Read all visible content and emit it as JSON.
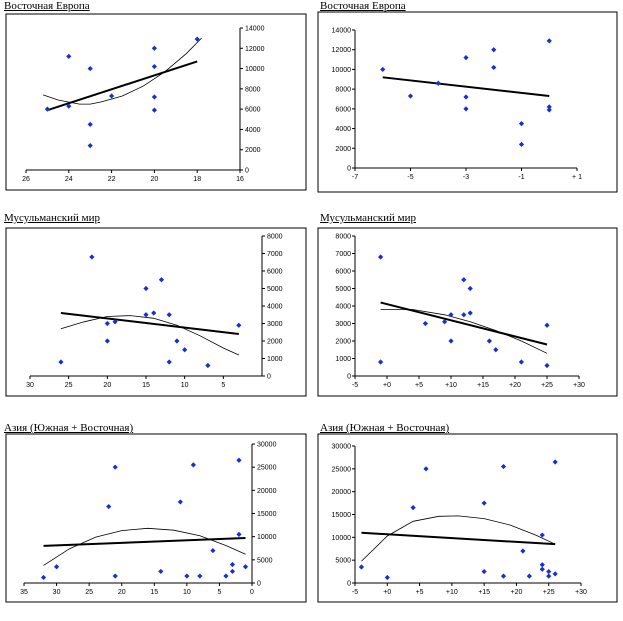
{
  "colors": {
    "points": "#1a2fd0",
    "lines": "#000000",
    "background": "#ffffff"
  },
  "chart_data": [
    {
      "type": "scatter",
      "title": "Восточная Европа",
      "x_reversed": true,
      "y_axis_side": "right",
      "xlim": [
        26,
        16
      ],
      "ylim": [
        0,
        14000
      ],
      "x_ticks": [
        26,
        24,
        22,
        20,
        18,
        16
      ],
      "x_tick_labels": [
        "26",
        "24",
        "22",
        "20",
        "18",
        "16"
      ],
      "y_ticks": [
        0,
        2000,
        4000,
        6000,
        8000,
        10000,
        12000,
        14000
      ],
      "y_tick_labels": [
        "0",
        "2000",
        "4000",
        "6000",
        "8000",
        "10000",
        "12000",
        "14000"
      ],
      "points": [
        [
          25,
          6000
        ],
        [
          24,
          11200
        ],
        [
          24,
          6300
        ],
        [
          23,
          10000
        ],
        [
          23,
          4500
        ],
        [
          23,
          2400
        ],
        [
          22,
          7300
        ],
        [
          20,
          12000
        ],
        [
          20,
          10200
        ],
        [
          20,
          7200
        ],
        [
          20,
          5900
        ],
        [
          18,
          12900
        ]
      ],
      "linear_trend": [
        [
          25,
          5900
        ],
        [
          18,
          10700
        ]
      ],
      "poly_trend": [
        [
          25.2,
          7400
        ],
        [
          24.5,
          6900
        ],
        [
          23.5,
          6500
        ],
        [
          23,
          6500
        ],
        [
          22.5,
          6700
        ],
        [
          21.5,
          7300
        ],
        [
          20.5,
          8300
        ],
        [
          19.5,
          9700
        ],
        [
          18.5,
          11500
        ],
        [
          17.8,
          13000
        ]
      ]
    },
    {
      "type": "scatter",
      "title": "Восточная Европа",
      "y_axis_side": "left",
      "xlim": [
        -7,
        1
      ],
      "ylim": [
        0,
        14000
      ],
      "x_ticks": [
        -7,
        -5,
        -3,
        -1,
        1
      ],
      "x_tick_labels": [
        "-7",
        "-5",
        "-3",
        "-1",
        "+ 1"
      ],
      "y_ticks": [
        0,
        2000,
        4000,
        6000,
        8000,
        10000,
        12000,
        14000
      ],
      "y_tick_labels": [
        "0",
        "2000",
        "4000",
        "6000",
        "8000",
        "10000",
        "12000",
        "14000"
      ],
      "points": [
        [
          -6,
          10000
        ],
        [
          -5,
          7300
        ],
        [
          -4,
          8600
        ],
        [
          -3,
          11200
        ],
        [
          -3,
          7200
        ],
        [
          -3,
          6000
        ],
        [
          -2,
          12000
        ],
        [
          -2,
          10200
        ],
        [
          -1,
          4500
        ],
        [
          -1,
          2400
        ],
        [
          0,
          12900
        ],
        [
          0,
          6200
        ],
        [
          0,
          5900
        ]
      ],
      "linear_trend": [
        [
          -6,
          9200
        ],
        [
          0,
          7300
        ]
      ]
    },
    {
      "type": "scatter",
      "title": "Мусульманский мир",
      "x_reversed": true,
      "y_axis_side": "right",
      "xlim": [
        30,
        0
      ],
      "ylim": [
        0,
        8000
      ],
      "x_ticks": [
        30,
        25,
        20,
        15,
        10,
        5
      ],
      "x_tick_labels": [
        "30",
        "25",
        "20",
        "15",
        "10",
        "5"
      ],
      "y_ticks": [
        0,
        1000,
        2000,
        3000,
        4000,
        5000,
        6000,
        7000,
        8000
      ],
      "y_tick_labels": [
        "0",
        "1000",
        "2000",
        "3000",
        "4000",
        "5000",
        "6000",
        "7000",
        "8000"
      ],
      "points": [
        [
          26,
          800
        ],
        [
          22,
          6800
        ],
        [
          20,
          3000
        ],
        [
          20,
          2000
        ],
        [
          19,
          3100
        ],
        [
          15,
          5000
        ],
        [
          15,
          3500
        ],
        [
          14,
          3600
        ],
        [
          13,
          5500
        ],
        [
          12,
          3500
        ],
        [
          12,
          800
        ],
        [
          11,
          2000
        ],
        [
          10,
          1500
        ],
        [
          7,
          600
        ],
        [
          3,
          2900
        ]
      ],
      "linear_trend": [
        [
          26,
          3600
        ],
        [
          3,
          2400
        ]
      ],
      "poly_trend": [
        [
          26,
          2700
        ],
        [
          23,
          3100
        ],
        [
          20,
          3400
        ],
        [
          17,
          3450
        ],
        [
          14,
          3300
        ],
        [
          11,
          2900
        ],
        [
          8,
          2300
        ],
        [
          5,
          1600
        ],
        [
          3,
          1200
        ]
      ]
    },
    {
      "type": "scatter",
      "title": "Мусульманский мир",
      "y_axis_side": "left",
      "xlim": [
        -5,
        30
      ],
      "ylim": [
        0,
        8000
      ],
      "x_ticks": [
        -5,
        0,
        5,
        10,
        15,
        20,
        25,
        30
      ],
      "x_tick_labels": [
        "-5",
        "+0",
        "+5",
        "+10",
        "+15",
        "+20",
        "+25",
        "+30"
      ],
      "y_ticks": [
        0,
        1000,
        2000,
        3000,
        4000,
        5000,
        6000,
        7000,
        8000
      ],
      "y_tick_labels": [
        "0",
        "1000",
        "2000",
        "3000",
        "4000",
        "5000",
        "6000",
        "7000",
        "8000"
      ],
      "points": [
        [
          -1,
          6800
        ],
        [
          -1,
          800
        ],
        [
          6,
          3000
        ],
        [
          9,
          3100
        ],
        [
          10,
          2000
        ],
        [
          10,
          3500
        ],
        [
          12,
          5500
        ],
        [
          12,
          3500
        ],
        [
          13,
          5000
        ],
        [
          13,
          3600
        ],
        [
          16,
          2000
        ],
        [
          17,
          1500
        ],
        [
          21,
          800
        ],
        [
          25,
          2900
        ],
        [
          25,
          600
        ]
      ],
      "linear_trend": [
        [
          -1,
          4200
        ],
        [
          25,
          1800
        ]
      ],
      "poly_trend": [
        [
          -1,
          3800
        ],
        [
          4,
          3800
        ],
        [
          9,
          3500
        ],
        [
          13,
          3100
        ],
        [
          17,
          2600
        ],
        [
          21,
          2000
        ],
        [
          25,
          1300
        ]
      ]
    },
    {
      "type": "scatter",
      "title": "Азия (Южная + Восточная)",
      "x_reversed": true,
      "y_axis_side": "right",
      "xlim": [
        35,
        0
      ],
      "ylim": [
        0,
        30000
      ],
      "x_ticks": [
        35,
        30,
        25,
        20,
        15,
        10,
        5,
        0
      ],
      "x_tick_labels": [
        "35",
        "30",
        "25",
        "20",
        "15",
        "10",
        "5",
        "0"
      ],
      "y_ticks": [
        0,
        5000,
        10000,
        15000,
        20000,
        25000,
        30000
      ],
      "y_tick_labels": [
        "0",
        "5000",
        "10000",
        "15000",
        "20000",
        "25000",
        "30000"
      ],
      "points": [
        [
          32,
          1200
        ],
        [
          30,
          3500
        ],
        [
          22,
          16500
        ],
        [
          21,
          25000
        ],
        [
          21,
          1500
        ],
        [
          14,
          2500
        ],
        [
          11,
          17500
        ],
        [
          10,
          1500
        ],
        [
          9,
          25500
        ],
        [
          8,
          1500
        ],
        [
          6,
          7000
        ],
        [
          4,
          1500
        ],
        [
          3,
          2500
        ],
        [
          3,
          4000
        ],
        [
          2,
          26500
        ],
        [
          2,
          10500
        ],
        [
          1,
          3500
        ]
      ],
      "linear_trend": [
        [
          32,
          8000
        ],
        [
          1,
          9700
        ]
      ],
      "poly_trend": [
        [
          32,
          3800
        ],
        [
          28,
          7400
        ],
        [
          24,
          9900
        ],
        [
          20,
          11300
        ],
        [
          16,
          11800
        ],
        [
          12,
          11400
        ],
        [
          8,
          10200
        ],
        [
          4,
          8100
        ],
        [
          1,
          6200
        ]
      ]
    },
    {
      "type": "scatter",
      "title": "Азия (Южная + Восточная)",
      "y_axis_side": "left",
      "xlim": [
        -5,
        30
      ],
      "ylim": [
        0,
        30000
      ],
      "x_ticks": [
        -5,
        0,
        5,
        10,
        15,
        20,
        25,
        30
      ],
      "x_tick_labels": [
        "-5",
        "+0",
        "+5",
        "+10",
        "+15",
        "+20",
        "+25",
        "+30"
      ],
      "y_ticks": [
        0,
        5000,
        10000,
        15000,
        20000,
        25000,
        30000
      ],
      "y_tick_labels": [
        "0",
        "5000",
        "10000",
        "15000",
        "20000",
        "25000",
        "30000"
      ],
      "points": [
        [
          -4,
          3500
        ],
        [
          0,
          1200
        ],
        [
          4,
          16500
        ],
        [
          6,
          25000
        ],
        [
          15,
          17500
        ],
        [
          15,
          2500
        ],
        [
          18,
          25500
        ],
        [
          18,
          1500
        ],
        [
          21,
          7000
        ],
        [
          22,
          1500
        ],
        [
          24,
          10500
        ],
        [
          24,
          4000
        ],
        [
          24,
          3000
        ],
        [
          25,
          2500
        ],
        [
          25,
          1500
        ],
        [
          26,
          26500
        ],
        [
          26,
          2000
        ]
      ],
      "linear_trend": [
        [
          -4,
          11000
        ],
        [
          26,
          8500
        ]
      ],
      "poly_trend": [
        [
          -4,
          4800
        ],
        [
          0,
          10300
        ],
        [
          4,
          13500
        ],
        [
          8,
          14600
        ],
        [
          11,
          14700
        ],
        [
          15,
          14100
        ],
        [
          19,
          12700
        ],
        [
          23,
          10500
        ],
        [
          26,
          8500
        ]
      ]
    }
  ]
}
